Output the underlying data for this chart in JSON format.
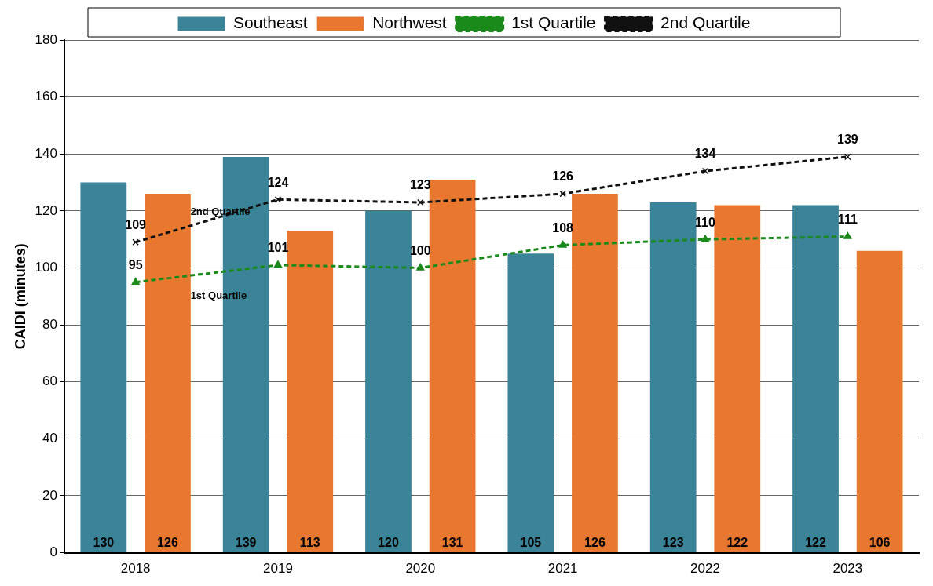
{
  "chart_data": {
    "type": "bar",
    "ylabel": "CAIDI (minutes)",
    "categories": [
      "2018",
      "2019",
      "2020",
      "2021",
      "2022",
      "2023"
    ],
    "series": [
      {
        "name": "Southeast",
        "color": "#3b8397",
        "values": [
          130,
          139,
          120,
          105,
          123,
          122
        ]
      },
      {
        "name": "Northwest",
        "color": "#e8782f",
        "values": [
          126,
          113,
          131,
          126,
          122,
          106
        ]
      },
      {
        "name": "1st Quartile",
        "type": "line",
        "color": "#1a8a1a",
        "marker": "triangle",
        "line_style": "dashed",
        "values": [
          95,
          101,
          100,
          108,
          110,
          111
        ]
      },
      {
        "name": "2nd Quartile",
        "type": "line",
        "color": "#111111",
        "marker": "cross",
        "line_style": "dashed",
        "values": [
          109,
          124,
          123,
          126,
          134,
          139
        ]
      }
    ],
    "annotations": [
      "2nd Quartile",
      "1st Quartile"
    ],
    "ylim": [
      0,
      180
    ],
    "yticks": [
      0,
      20,
      40,
      60,
      80,
      100,
      120,
      140,
      160,
      180
    ],
    "grid": "y",
    "legend": "top",
    "data_labels": true
  }
}
